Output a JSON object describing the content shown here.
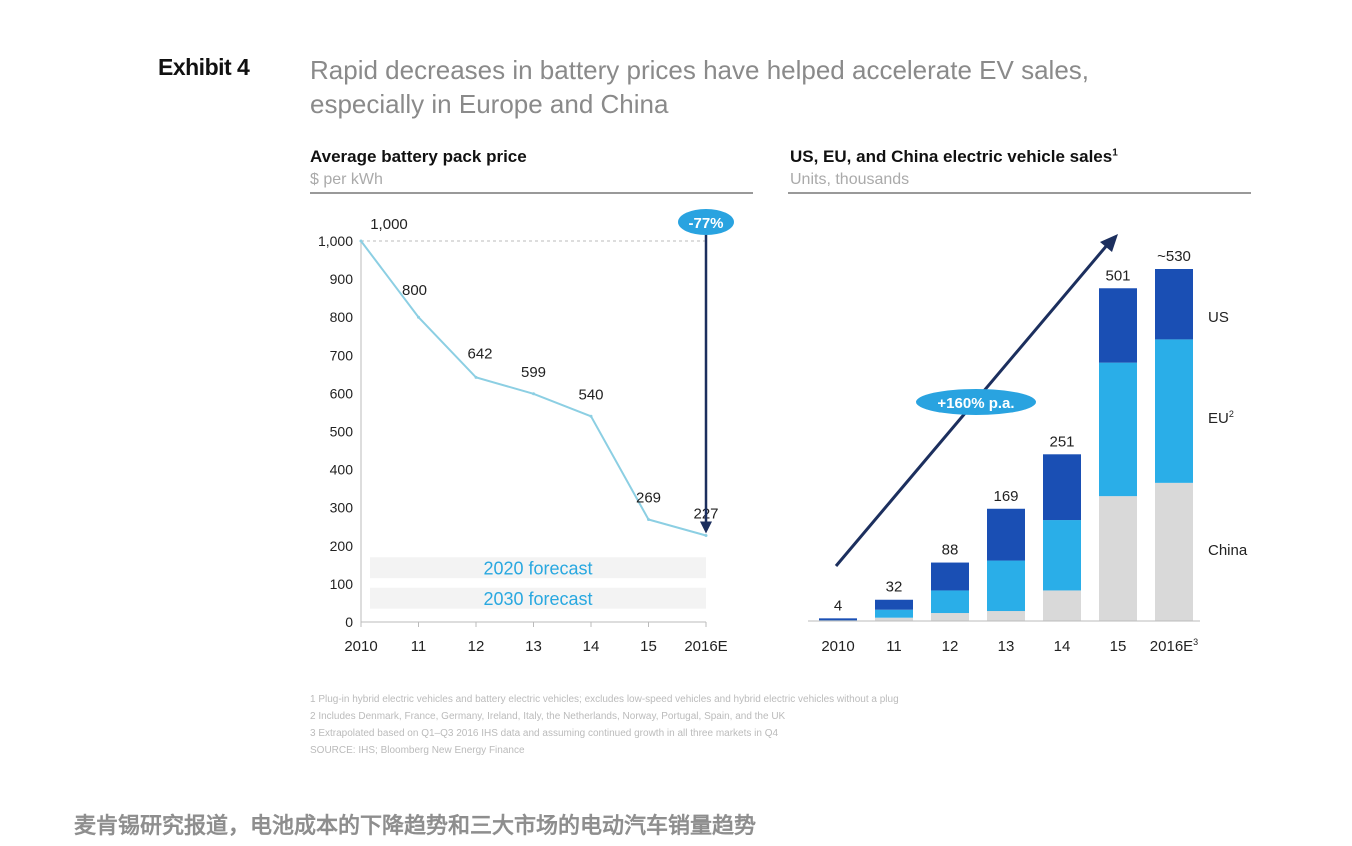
{
  "exhibit": {
    "label": "Exhibit 4",
    "headline_line1": "Rapid decreases in battery prices have helped accelerate EV sales,",
    "headline_line2": "especially in Europe and China"
  },
  "left_panel": {
    "title": "Average battery pack price",
    "subtitle": "$ per kWh",
    "change_badge": "-77%",
    "forecast_labels": [
      "2020 forecast",
      "2030 forecast"
    ]
  },
  "right_panel": {
    "title": "US, EU, and China electric vehicle sales",
    "title_sup": "1",
    "subtitle": "Units, thousands",
    "growth_badge": "+160% p.a."
  },
  "footnotes": [
    "1 Plug-in hybrid electric vehicles and battery electric vehicles; excludes low-speed vehicles and hybrid electric vehicles without a plug",
    "2 Includes Denmark, France, Germany, Ireland, Italy, the Netherlands, Norway, Portugal, Spain, and the UK",
    "3 Extrapolated based on Q1–Q3 2016 IHS data and assuming continued growth in all three markets in Q4",
    "SOURCE: IHS; Bloomberg New Energy Finance"
  ],
  "caption": "麦肯锡研究报道，电池成本的下降趋势和三大市场的电动汽车销量趋势",
  "colors": {
    "line": "#8ccfe3",
    "badge": "#29a3e0",
    "arrow": "#1c2f5e",
    "us": "#1a4fb4",
    "eu": "#2aaee8",
    "china": "#d9d9d9",
    "forecast_text": "#29a8e0"
  },
  "chart_data": [
    {
      "type": "line",
      "title": "Average battery pack price",
      "ylabel": "$ per kWh",
      "x": [
        "2010",
        "11",
        "12",
        "13",
        "14",
        "15",
        "2016E"
      ],
      "values": [
        1000,
        800,
        642,
        599,
        540,
        269,
        227
      ],
      "data_labels": [
        "1,000",
        "800",
        "642",
        "599",
        "540",
        "269",
        "227"
      ],
      "ylim": [
        0,
        1000
      ],
      "yticks": [
        0,
        100,
        200,
        300,
        400,
        500,
        600,
        700,
        800,
        900,
        1000
      ],
      "ytick_labels": [
        "0",
        "100",
        "200",
        "300",
        "400",
        "500",
        "600",
        "700",
        "800",
        "900",
        "1,000"
      ],
      "grid": false,
      "annotations": [
        "-77%",
        "2020 forecast",
        "2030 forecast"
      ]
    },
    {
      "type": "bar",
      "stacked": true,
      "title": "US, EU, and China electric vehicle sales",
      "ylabel": "Units, thousands",
      "categories": [
        "2010",
        "11",
        "12",
        "13",
        "14",
        "15",
        "2016E"
      ],
      "category_sup": [
        "",
        "",
        "",
        "",
        "",
        "",
        "3"
      ],
      "series": [
        {
          "name": "China",
          "values": [
            0,
            5,
            12,
            15,
            46,
            188,
            208
          ]
        },
        {
          "name": "EU",
          "name_sup": "2",
          "values": [
            1,
            12,
            34,
            76,
            106,
            201,
            216
          ]
        },
        {
          "name": "US",
          "values": [
            3,
            15,
            42,
            78,
            99,
            112,
            106
          ]
        }
      ],
      "totals": [
        "4",
        "32",
        "88",
        "169",
        "251",
        "501",
        "~530"
      ],
      "ylim": [
        0,
        530
      ],
      "grid": false,
      "legend": "right",
      "annotations": [
        "+160% p.a."
      ]
    }
  ]
}
